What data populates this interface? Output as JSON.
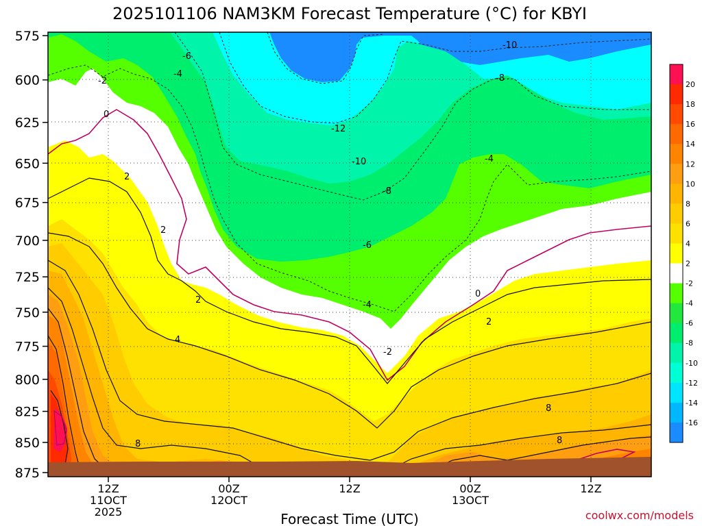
{
  "chart_data": {
    "type": "heatmap",
    "title": "2025101106 NAM3KM Forecast Temperature (°C) for KBYI",
    "xlabel": "Forecast Time (UTC)",
    "ylabel": "",
    "y_axis": {
      "ticks": [
        "575",
        "600",
        "625",
        "650",
        "675",
        "700",
        "725",
        "750",
        "775",
        "800",
        "825",
        "850",
        "875"
      ],
      "units": "hPa",
      "inverted": true
    },
    "x_axis": {
      "ticks": [
        {
          "hour": 12,
          "lines": [
            "12Z",
            "11OCT",
            "2025"
          ]
        },
        {
          "hour": 24,
          "lines": [
            "00Z",
            "12OCT"
          ]
        },
        {
          "hour": 36,
          "lines": [
            "12Z"
          ]
        },
        {
          "hour": 48,
          "lines": [
            "00Z",
            "13OCT"
          ]
        },
        {
          "hour": 60,
          "lines": [
            "12Z"
          ]
        }
      ],
      "range": [
        6,
        66
      ]
    },
    "grid": true,
    "colorbar": {
      "labels": [
        "20",
        "18",
        "16",
        "14",
        "12",
        "10",
        "8",
        "6",
        "4",
        "2",
        "-2",
        "-4",
        "-6",
        "-8",
        "-10",
        "-12",
        "-14",
        "-16"
      ],
      "colors": [
        "#ff1053",
        "#ff2a00",
        "#ff4a00",
        "#ff6a00",
        "#ff8500",
        "#ff9e10",
        "#ffb400",
        "#ffcc00",
        "#ffe100",
        "#ffff00",
        "#ffffff",
        "#55ff00",
        "#22e83d",
        "#00ee6e",
        "#00f5aa",
        "#00ffd5",
        "#00e5ff",
        "#00b8ff",
        "#1a8cff"
      ]
    },
    "contour_labels": [
      "-2",
      "0",
      "2",
      "-6",
      "-4",
      "-10",
      "-8",
      "-12",
      "-4",
      "-10",
      "-8",
      "-6",
      "-4",
      "-2",
      "0",
      "2",
      "2",
      "4",
      "2",
      "8",
      "8",
      "8"
    ],
    "terrain_color": "#a0522d",
    "credit": "coolwx.com/models"
  }
}
